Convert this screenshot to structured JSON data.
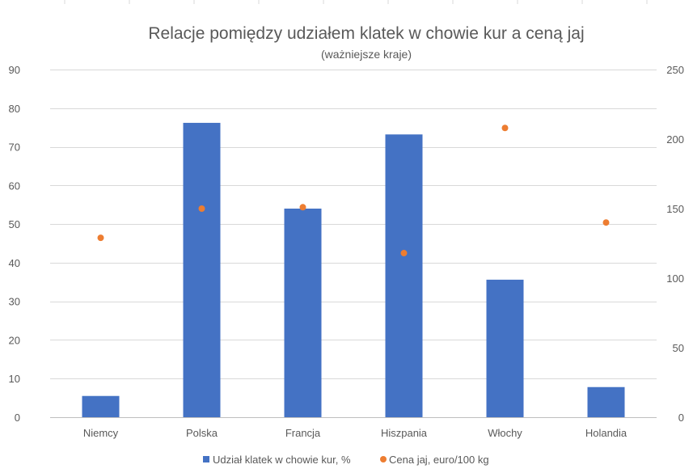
{
  "chart_data": {
    "type": "bar",
    "title": "Relacje pomiędzy udziałem klatek w chowie kur a ceną jaj",
    "subtitle": "(ważniejsze kraje)",
    "categories": [
      "Niemcy",
      "Polska",
      "Francja",
      "Hiszpania",
      "Włochy",
      "Holandia"
    ],
    "series": [
      {
        "name": "Udział klatek w chowie kur, %",
        "kind": "bar",
        "axis": "left",
        "color": "#4472C4",
        "values": [
          5.5,
          76.2,
          54,
          73.2,
          35.6,
          7.8
        ]
      },
      {
        "name": "Cena jaj, euro/100 kg",
        "kind": "scatter",
        "axis": "right",
        "color": "#ED7D31",
        "values": [
          129,
          150,
          151,
          118,
          208,
          140
        ]
      }
    ],
    "y_left": {
      "min": 0,
      "max": 90,
      "ticks": [
        0,
        10,
        20,
        30,
        40,
        50,
        60,
        70,
        80,
        90
      ]
    },
    "y_right": {
      "min": 0,
      "max": 250,
      "ticks": [
        0,
        50,
        100,
        150,
        200,
        250
      ]
    },
    "grid": true,
    "legend_position": "bottom"
  }
}
